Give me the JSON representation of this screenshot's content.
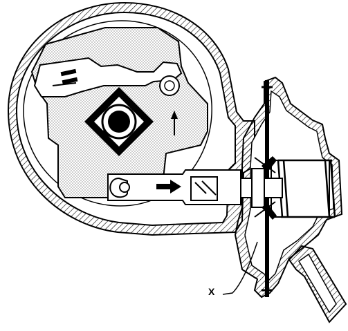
{
  "figure": {
    "callout": "X"
  },
  "colors": {
    "ink": "#000000",
    "paper": "#ffffff",
    "stipple": "#7a7a7a"
  }
}
